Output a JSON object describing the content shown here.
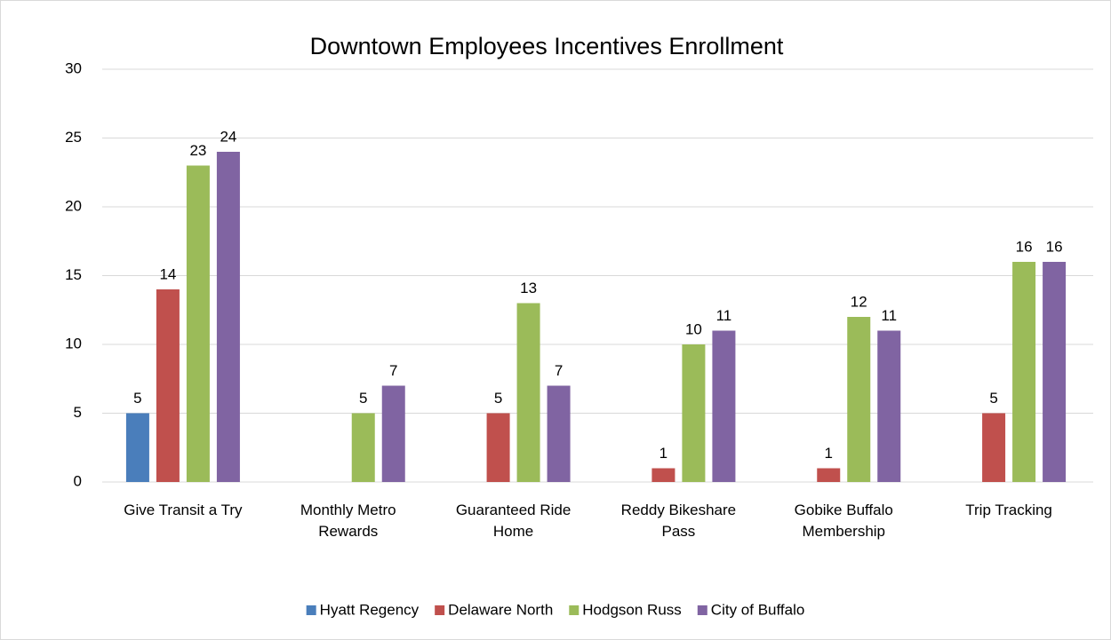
{
  "chart_data": {
    "type": "bar",
    "title": "Downtown Employees Incentives Enrollment",
    "categories": [
      "Give Transit a Try",
      "Monthly Metro Rewards",
      "Guaranteed Ride Home",
      "Reddy Bikeshare Pass",
      "Gobike Buffalo Membership",
      "Trip Tracking"
    ],
    "series": [
      {
        "name": "Hyatt Regency",
        "color": "#4a7ebb",
        "values": [
          5,
          null,
          null,
          null,
          null,
          null
        ]
      },
      {
        "name": "Delaware North",
        "color": "#c0504d",
        "values": [
          14,
          null,
          5,
          1,
          1,
          5
        ]
      },
      {
        "name": "Hodgson Russ",
        "color": "#9bbb59",
        "values": [
          23,
          5,
          13,
          10,
          12,
          16
        ]
      },
      {
        "name": "City of Buffalo",
        "color": "#8064a2",
        "values": [
          24,
          7,
          7,
          11,
          11,
          16
        ]
      }
    ],
    "ylim": [
      0,
      30
    ],
    "yticks": [
      0,
      5,
      10,
      15,
      20,
      25,
      30
    ],
    "grid": true,
    "legend": "bottom"
  }
}
